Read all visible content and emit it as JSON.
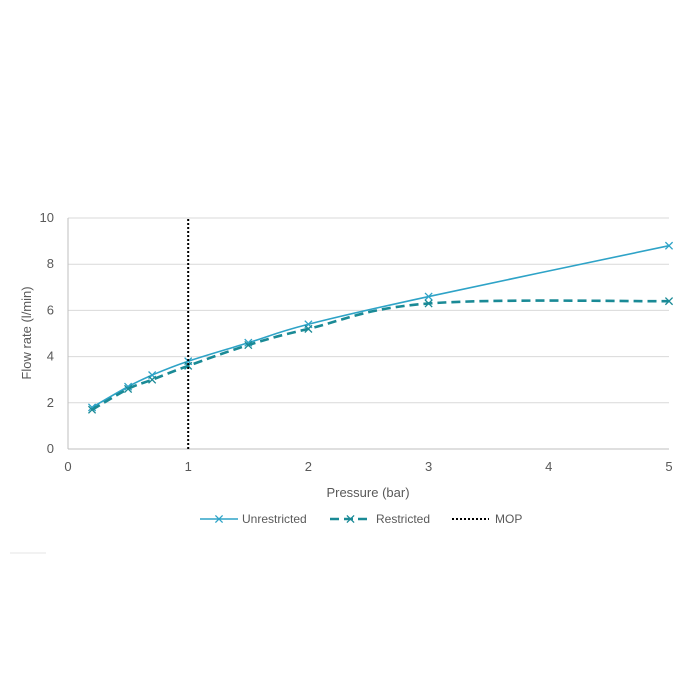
{
  "chart_data": {
    "type": "line",
    "title": "",
    "xlabel": "Pressure (bar)",
    "ylabel": "Flow rate (l/min)",
    "xlim": [
      0,
      5
    ],
    "ylim": [
      0,
      10
    ],
    "xticks": [
      "0",
      "1",
      "2",
      "3",
      "4",
      "5"
    ],
    "yticks": [
      "0",
      "2",
      "4",
      "6",
      "8",
      "10"
    ],
    "grid": "horizontal",
    "legend_position": "bottom",
    "series": [
      {
        "name": "Unrestricted",
        "color": "#2ea3c7",
        "style": "solid",
        "marker": "x",
        "x": [
          0.2,
          0.5,
          0.7,
          1.0,
          1.5,
          2.0,
          3.0,
          5.0
        ],
        "y": [
          1.8,
          2.7,
          3.2,
          3.8,
          4.6,
          5.4,
          6.6,
          8.8
        ]
      },
      {
        "name": "Restricted",
        "color": "#1a8a96",
        "style": "dashed",
        "marker": "x",
        "x": [
          0.2,
          0.5,
          0.7,
          1.0,
          1.5,
          2.0,
          3.0,
          5.0
        ],
        "y": [
          1.7,
          2.6,
          3.0,
          3.6,
          4.5,
          5.2,
          6.3,
          6.4
        ]
      },
      {
        "name": "MOP",
        "color": "#000000",
        "style": "dotted",
        "marker": "none",
        "x": [
          1.0,
          1.0
        ],
        "y": [
          0,
          10
        ]
      }
    ]
  }
}
